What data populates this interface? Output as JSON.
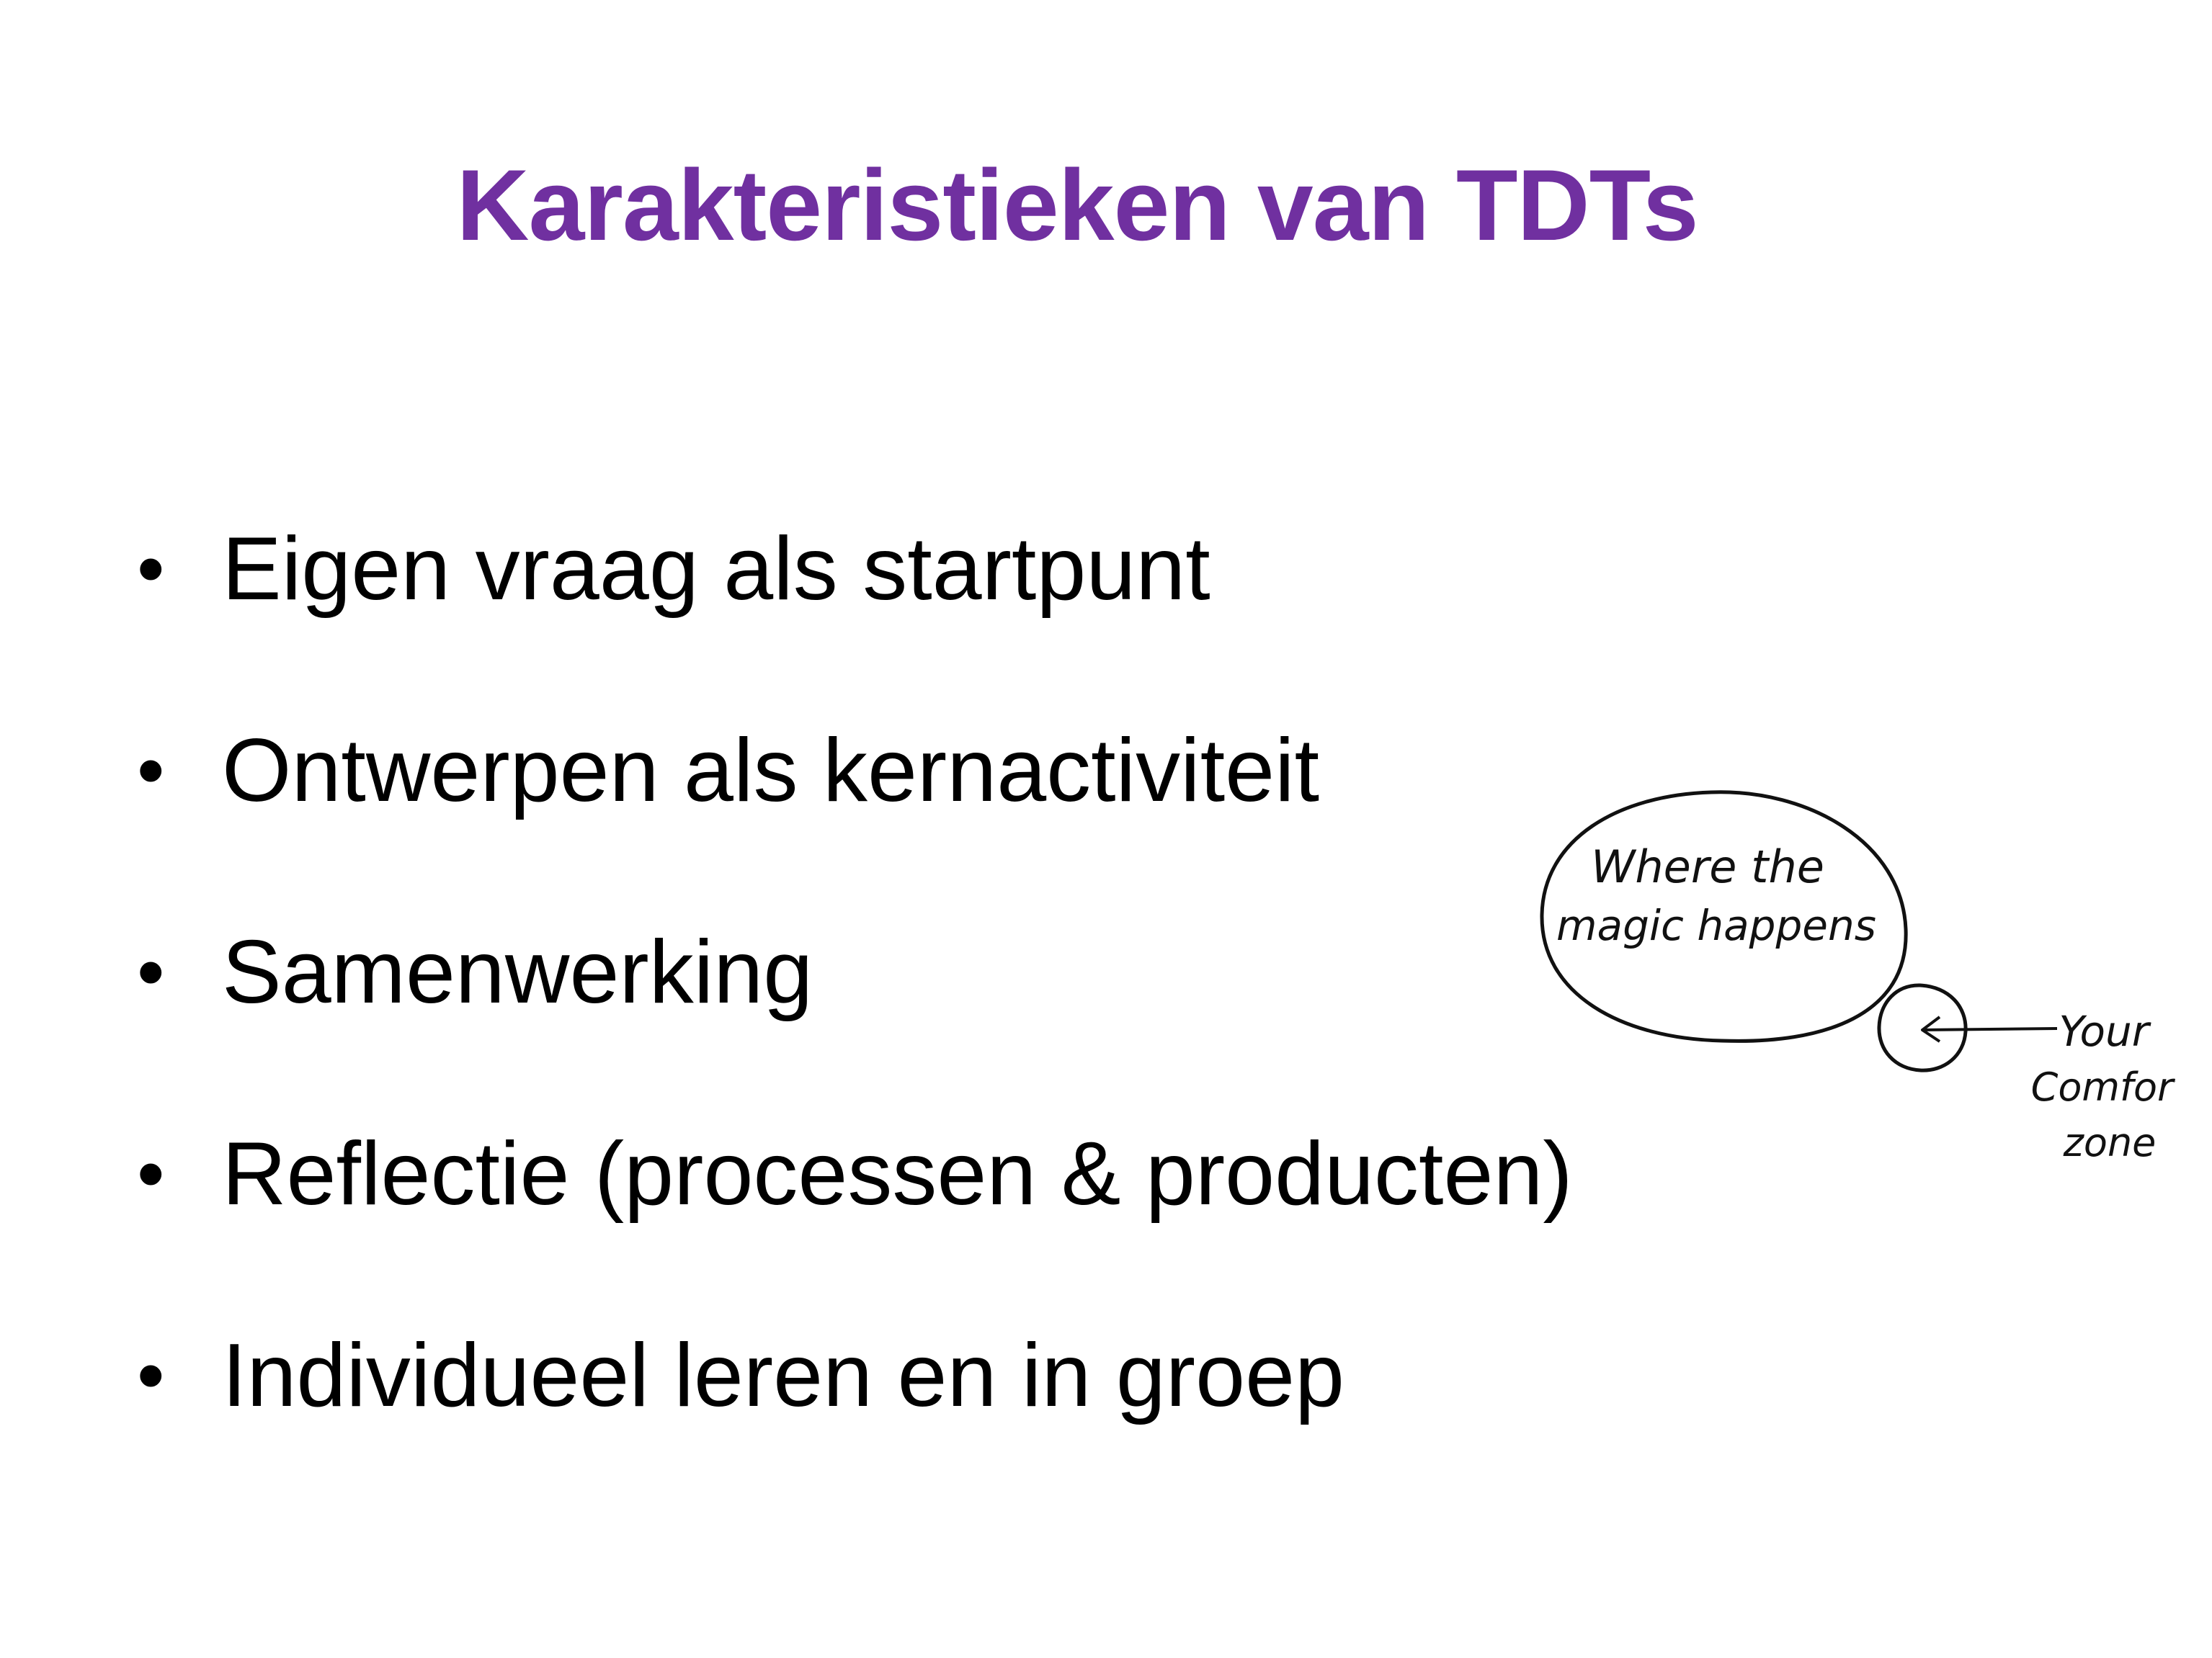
{
  "slide": {
    "title": "Karakteristieken van TDTs",
    "title_color": "#7030a0",
    "text_color": "#000000",
    "bullet_symbol": "•",
    "bullets": [
      "Eigen vraag als startpunt",
      "Ontwerpen als kernactiviteit",
      "Samenwerking",
      "Reflectie (processen & producten)",
      "Individueel leren en in groep"
    ]
  },
  "comfort_zone_sketch": {
    "big_circle_line1": "Where the",
    "big_circle_line2": "magic happens",
    "label_line1": "Your",
    "label_line2": "Comfort",
    "label_line3": "zone"
  }
}
